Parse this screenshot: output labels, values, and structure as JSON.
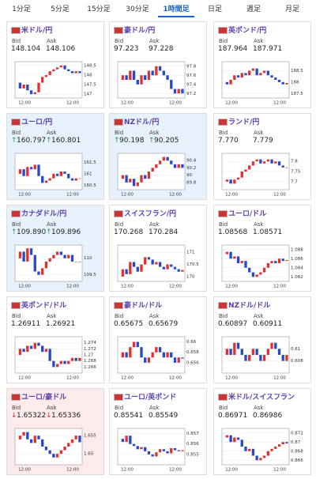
{
  "tabs": {
    "labels": [
      "1分足",
      "5分足",
      "15分足",
      "30分足",
      "1時間足",
      "日足",
      "週足",
      "月足"
    ],
    "active": 4
  },
  "bid_label": "Bid",
  "ask_label": "Ask",
  "time_labels": [
    "12:00",
    "12:00"
  ],
  "up": {
    "arrow": "↑",
    "color": "#2a9d4a",
    "bg": "#e6f1fb"
  },
  "down": {
    "arrow": "↓",
    "color": "#d03030",
    "bg": "#fdeaea"
  },
  "candle_colors": {
    "up": "#e03030",
    "down": "#2848c8"
  },
  "cards": [
    {
      "name": "米ドル/円",
      "bid": "148.104",
      "ask": "148.106",
      "ylim": [
        146.8,
        148.7
      ],
      "yticks": [
        148.5,
        148,
        147.5,
        147
      ],
      "closes": [
        147.6,
        147.3,
        147.5,
        147.2,
        147.0,
        147.1,
        147.6,
        147.9,
        148.0,
        148.2,
        148.3,
        148.4,
        148.5,
        148.3,
        148.2,
        148.1,
        148.2,
        148.1
      ]
    },
    {
      "name": "豪ドル/円",
      "bid": "97.223",
      "ask": "97.228",
      "ylim": [
        97.1,
        97.9
      ],
      "yticks": [
        97.8,
        97.6,
        97.4,
        97.2
      ],
      "closes": [
        97.5,
        97.6,
        97.5,
        97.7,
        97.5,
        97.4,
        97.6,
        97.5,
        97.7,
        97.6,
        97.8,
        97.7,
        97.6,
        97.5,
        97.3,
        97.2,
        97.3,
        97.2
      ]
    },
    {
      "name": "英ポンド/円",
      "bid": "187.964",
      "ask": "187.971",
      "ylim": [
        187.3,
        188.9
      ],
      "yticks": [
        188.5,
        188,
        187.5
      ],
      "closes": [
        188.0,
        187.9,
        188.1,
        188.3,
        188.2,
        188.4,
        188.3,
        188.5,
        188.6,
        188.3,
        188.4,
        188.5,
        188.3,
        188.2,
        188.1,
        188.0,
        187.9,
        187.96
      ]
    },
    {
      "name": "ユーロ/円",
      "trend": "up",
      "bid": "160.797",
      "ask": "160.801",
      "ylim": [
        160.3,
        161.9
      ],
      "yticks": [
        161.5,
        161,
        160.5
      ],
      "closes": [
        161.0,
        161.2,
        160.9,
        161.3,
        161.2,
        161.4,
        160.9,
        160.6,
        160.7,
        160.8,
        161.0,
        160.9,
        161.1,
        161.0,
        160.8,
        160.7,
        160.8,
        160.8
      ]
    },
    {
      "name": "NZドル/円",
      "trend": "up",
      "bid": "90.198",
      "ask": "90.205",
      "ylim": [
        89.6,
        90.6
      ],
      "yticks": [
        90.4,
        90.2,
        90,
        89.8
      ],
      "closes": [
        89.9,
        90.0,
        89.8,
        89.9,
        89.7,
        89.8,
        90.0,
        89.9,
        90.1,
        90.2,
        90.3,
        90.4,
        90.5,
        90.4,
        90.3,
        90.2,
        90.3,
        90.2
      ]
    },
    {
      "name": "ランド/円",
      "bid": "7.770",
      "ask": "7.779",
      "ylim": [
        7.66,
        7.84
      ],
      "yticks": [
        7.8,
        7.75,
        7.7
      ],
      "closes": [
        7.7,
        7.71,
        7.69,
        7.71,
        7.72,
        7.75,
        7.76,
        7.78,
        7.8,
        7.81,
        7.79,
        7.8,
        7.81,
        7.79,
        7.8,
        7.78,
        7.77,
        7.77
      ]
    },
    {
      "name": "カナダドル/円",
      "trend": "up",
      "bid": "109.890",
      "ask": "109.896",
      "ylim": [
        109.3,
        110.4
      ],
      "yticks": [
        110,
        109.5
      ],
      "closes": [
        110.0,
        110.2,
        109.9,
        110.3,
        110.1,
        109.6,
        109.5,
        109.7,
        109.9,
        110.0,
        110.1,
        110.2,
        110.1,
        110.0,
        110.1,
        109.9,
        109.9,
        109.89
      ]
    },
    {
      "name": "スイスフラン/円",
      "bid": "170.268",
      "ask": "170.284",
      "ylim": [
        169.8,
        171.3
      ],
      "yticks": [
        171,
        170.5,
        170
      ],
      "closes": [
        170.0,
        170.3,
        170.1,
        170.6,
        170.4,
        170.2,
        170.5,
        170.8,
        170.7,
        170.5,
        170.6,
        170.4,
        170.3,
        170.5,
        170.4,
        170.3,
        170.2,
        170.27
      ]
    },
    {
      "name": "ユーロ/ドル",
      "bid": "1.08568",
      "ask": "1.08571",
      "ylim": [
        1.081,
        1.089
      ],
      "yticks": [
        1.088,
        1.086,
        1.084,
        1.082
      ],
      "closes": [
        1.087,
        1.0875,
        1.086,
        1.0865,
        1.085,
        1.0855,
        1.084,
        1.083,
        1.082,
        1.0825,
        1.083,
        1.084,
        1.085,
        1.0855,
        1.085,
        1.086,
        1.0855,
        1.0857
      ]
    },
    {
      "name": "英ポンド/ドル",
      "bid": "1.26911",
      "ask": "1.26921",
      "ylim": [
        1.264,
        1.276
      ],
      "yticks": [
        1.274,
        1.272,
        1.27,
        1.268,
        1.266
      ],
      "closes": [
        1.27,
        1.272,
        1.271,
        1.273,
        1.272,
        1.274,
        1.273,
        1.271,
        1.272,
        1.268,
        1.266,
        1.267,
        1.268,
        1.267,
        1.268,
        1.269,
        1.268,
        1.269
      ]
    },
    {
      "name": "豪ドル/ドル",
      "bid": "0.65675",
      "ask": "0.65679",
      "ylim": [
        0.654,
        0.661
      ],
      "yticks": [
        0.66,
        0.658,
        0.656
      ],
      "closes": [
        0.657,
        0.658,
        0.657,
        0.659,
        0.66,
        0.659,
        0.657,
        0.656,
        0.657,
        0.658,
        0.659,
        0.658,
        0.657,
        0.658,
        0.657,
        0.656,
        0.657,
        0.6568
      ]
    },
    {
      "name": "NZドル/ドル",
      "bid": "0.60897",
      "ask": "0.60911",
      "ylim": [
        0.606,
        0.612
      ],
      "yticks": [
        0.61,
        0.608
      ],
      "closes": [
        0.609,
        0.61,
        0.609,
        0.611,
        0.61,
        0.609,
        0.608,
        0.609,
        0.61,
        0.609,
        0.608,
        0.609,
        0.61,
        0.611,
        0.61,
        0.609,
        0.608,
        0.609
      ]
    },
    {
      "name": "ユーロ/豪ドル",
      "trend": "down",
      "bid": "1.65322",
      "ask": "1.65336",
      "ylim": [
        1.647,
        1.657
      ],
      "yticks": [
        1.655,
        1.65
      ],
      "closes": [
        1.654,
        1.655,
        1.656,
        1.654,
        1.653,
        1.655,
        1.654,
        1.652,
        1.651,
        1.65,
        1.649,
        1.65,
        1.651,
        1.652,
        1.653,
        1.654,
        1.655,
        1.6532
      ]
    },
    {
      "name": "ユーロ/英ポンド",
      "bid": "0.85541",
      "ask": "0.85549",
      "ylim": [
        0.854,
        0.8575
      ],
      "yticks": [
        0.857,
        0.856,
        0.855
      ],
      "closes": [
        0.8565,
        0.8562,
        0.8568,
        0.856,
        0.8558,
        0.8555,
        0.8557,
        0.8553,
        0.855,
        0.8548,
        0.8552,
        0.8555,
        0.8553,
        0.8551,
        0.8556,
        0.8554,
        0.8553,
        0.8554
      ]
    },
    {
      "name": "米ドル/スイスフラン",
      "bid": "0.86971",
      "ask": "0.86986",
      "ylim": [
        0.865,
        0.873
      ],
      "yticks": [
        0.872,
        0.87,
        0.868,
        0.866
      ],
      "closes": [
        0.871,
        0.8715,
        0.87,
        0.871,
        0.8705,
        0.869,
        0.868,
        0.8685,
        0.867,
        0.866,
        0.8665,
        0.867,
        0.868,
        0.8685,
        0.869,
        0.8695,
        0.87,
        0.8697
      ]
    }
  ]
}
